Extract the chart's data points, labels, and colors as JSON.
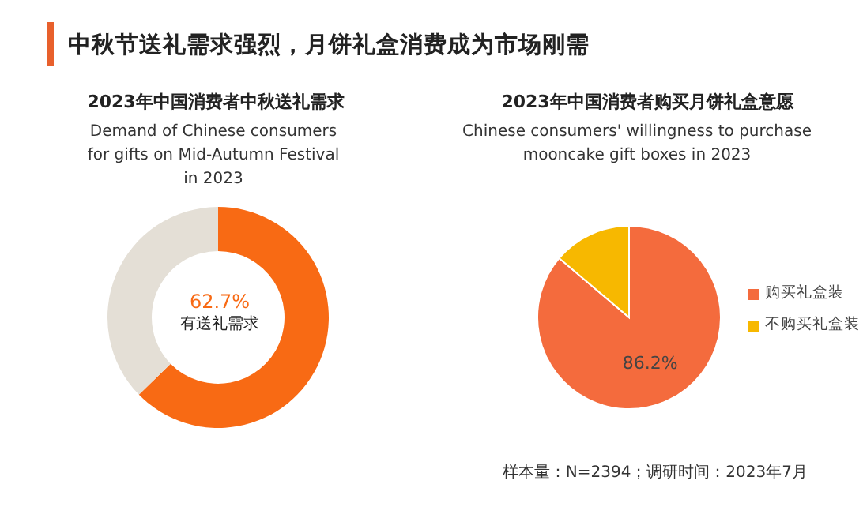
{
  "chart_data": [
    {
      "type": "donut",
      "title": "2023年中国消费者中秋送礼需求",
      "subtitle": "Demand of Chinese consumers for gifts on Mid-Autumn Festival in 2023",
      "annotations": [
        "中秋节送礼需求强烈，月饼礼盒消费成为市场刚需"
      ],
      "categories": [
        "有送礼需求",
        null
      ],
      "values": [
        62.7,
        37.3
      ],
      "value_labels": [
        "62.7%",
        null
      ],
      "colors": [
        "#f86a14",
        "#e4dfd6"
      ],
      "legend": false
    },
    {
      "type": "pie",
      "title": "2023年中国消费者购买月饼礼盒意愿",
      "subtitle": "Chinese consumers' willingness to purchase mooncake gift boxes in 2023",
      "annotations": [
        "样本量：N=2394；调研时间：2023年7月"
      ],
      "categories": [
        "购买礼盒装",
        "不购买礼盒装"
      ],
      "values": [
        86.2,
        13.8
      ],
      "value_labels": [
        "86.2%",
        null
      ],
      "colors": [
        "#f46b3d",
        "#f7b800"
      ],
      "legend": "right"
    }
  ]
}
